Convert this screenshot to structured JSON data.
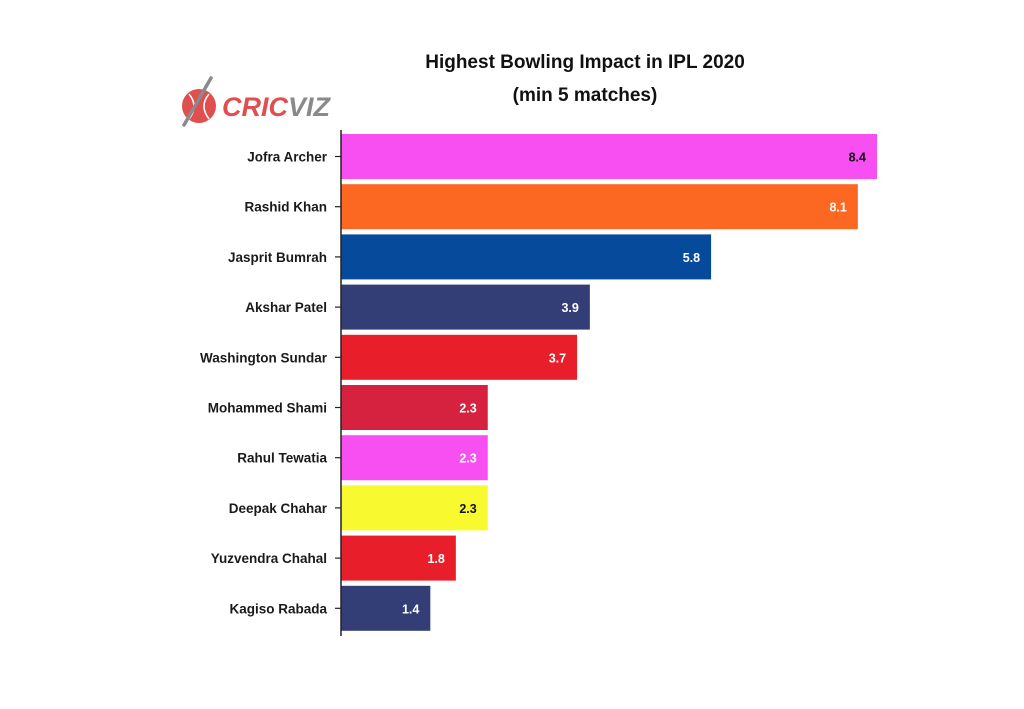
{
  "logo": {
    "part1": "CRIC",
    "part2": "VIZ",
    "part1_color": "#e04e4e",
    "part2_color": "#8a8a8a"
  },
  "chart_data": {
    "type": "bar",
    "orientation": "horizontal",
    "title": [
      "Highest Bowling Impact in IPL 2020",
      "(min 5 matches)"
    ],
    "xlabel": "",
    "ylabel": "",
    "xlim": [
      0,
      8.4
    ],
    "grid": false,
    "categories": [
      "Jofra Archer",
      "Rashid Khan",
      "Jasprit Bumrah",
      "Akshar Patel",
      "Washington Sundar",
      "Mohammed Shami",
      "Rahul Tewatia",
      "Deepak Chahar",
      "Yuzvendra Chahal",
      "Kagiso Rabada"
    ],
    "values": [
      8.4,
      8.1,
      5.8,
      3.9,
      3.7,
      2.3,
      2.3,
      2.3,
      1.8,
      1.4
    ],
    "value_labels": [
      "8.4",
      "8.1",
      "5.8",
      "3.9",
      "3.7",
      "2.3",
      "2.3",
      "2.3",
      "1.8",
      "1.4"
    ],
    "colors": [
      "#f74ff2",
      "#fc6722",
      "#064a9c",
      "#333e77",
      "#e81f2b",
      "#d6213f",
      "#f74ff2",
      "#f8f92e",
      "#e81f2b",
      "#333e77"
    ],
    "label_colors": [
      "#111111",
      "#ffffff",
      "#ffffff",
      "#ffffff",
      "#ffffff",
      "#ffffff",
      "#ffffff",
      "#111111",
      "#ffffff",
      "#ffffff"
    ]
  }
}
